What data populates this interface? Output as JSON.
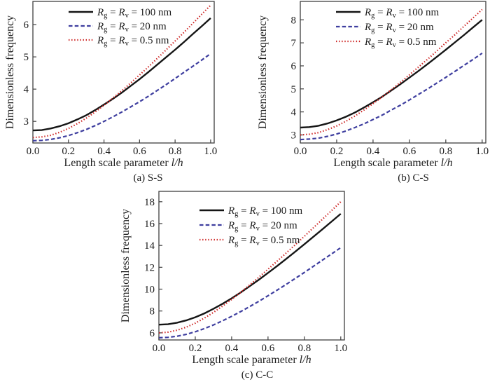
{
  "figure": {
    "background": "#ffffff",
    "text_color": "#1c1c1c",
    "frame_color": "#3f3f3f"
  },
  "chart_data": [
    {
      "id": "a",
      "type": "line",
      "caption": "(a) S-S",
      "ylabel": "Dimensionless frequency",
      "xlabel": "Length scale parameter l/h",
      "xlabel_parts": [
        {
          "t": "Length scale parameter "
        },
        {
          "t": "l/h",
          "i": 1
        }
      ],
      "xlim": [
        0,
        1.02
      ],
      "ylim": [
        2.33,
        6.72
      ],
      "xticks": [
        0,
        0.2,
        0.4,
        0.6,
        0.8,
        1.0
      ],
      "xtick_labels": [
        "0.0",
        "0.2",
        "0.4",
        "0.6",
        "0.8",
        "1.0"
      ],
      "yticks": [
        3,
        4,
        5,
        6
      ],
      "ytick_labels": [
        "3",
        "4",
        "5",
        "6"
      ],
      "legend_position": "top-left-inside",
      "grid": false,
      "x": [
        0,
        0.05,
        0.1,
        0.15,
        0.2,
        0.25,
        0.3,
        0.35,
        0.4,
        0.45,
        0.5,
        0.55,
        0.6,
        0.65,
        0.7,
        0.75,
        0.8,
        0.85,
        0.9,
        0.95,
        1.0
      ],
      "series": [
        {
          "key": "100nm",
          "name": "Rg = Rv = 100 nm",
          "label_parts": [
            {
              "t": "R",
              "i": 1
            },
            {
              "t": "g",
              "s": 1
            },
            {
              "t": " = "
            },
            {
              "t": "R",
              "i": 1
            },
            {
              "t": "v",
              "s": 1
            },
            {
              "t": " = 100 nm"
            }
          ],
          "style": "solid",
          "color": "#151515",
          "width": 2.4,
          "values": [
            2.72,
            2.73,
            2.78,
            2.85,
            2.94,
            3.06,
            3.19,
            3.35,
            3.52,
            3.7,
            3.89,
            4.1,
            4.31,
            4.53,
            4.76,
            4.99,
            5.22,
            5.46,
            5.71,
            5.95,
            6.2
          ]
        },
        {
          "key": "20nm",
          "name": "Rg = Rv = 20 nm",
          "label_parts": [
            {
              "t": "R",
              "i": 1
            },
            {
              "t": "g",
              "s": 1
            },
            {
              "t": " = "
            },
            {
              "t": "R",
              "i": 1
            },
            {
              "t": "v",
              "s": 1
            },
            {
              "t": " = 20 nm"
            }
          ],
          "style": "dashed",
          "color": "#3e3e9f",
          "width": 2.2,
          "values": [
            2.4,
            2.41,
            2.44,
            2.49,
            2.56,
            2.65,
            2.75,
            2.87,
            3.0,
            3.14,
            3.29,
            3.45,
            3.61,
            3.78,
            3.96,
            4.14,
            4.33,
            4.52,
            4.71,
            4.9,
            5.1
          ]
        },
        {
          "key": "0.5nm",
          "name": "Rg = Rv = 0.5 nm",
          "label_parts": [
            {
              "t": "R",
              "i": 1
            },
            {
              "t": "g",
              "s": 1
            },
            {
              "t": " = "
            },
            {
              "t": "R",
              "i": 1
            },
            {
              "t": "v",
              "s": 1
            },
            {
              "t": " = 0.5 nm"
            }
          ],
          "style": "dotted",
          "color": "#cc2120",
          "width": 2.2,
          "values": [
            2.5,
            2.52,
            2.57,
            2.66,
            2.78,
            2.93,
            3.1,
            3.29,
            3.5,
            3.72,
            3.95,
            4.19,
            4.44,
            4.69,
            4.95,
            5.22,
            5.49,
            5.76,
            6.04,
            6.32,
            6.6
          ]
        }
      ]
    },
    {
      "id": "b",
      "type": "line",
      "caption": "(b) C-S",
      "ylabel": "Dimensionless frequency",
      "xlabel": "Length scale parameter l/h",
      "xlabel_parts": [
        {
          "t": "Length scale parameter "
        },
        {
          "t": "l/h",
          "i": 1
        }
      ],
      "xlim": [
        0,
        1.02
      ],
      "ylim": [
        2.65,
        8.8
      ],
      "xticks": [
        0,
        0.2,
        0.4,
        0.6,
        0.8,
        1.0
      ],
      "xtick_labels": [
        "0.0",
        "0.2",
        "0.4",
        "0.6",
        "0.8",
        "1.0"
      ],
      "yticks": [
        3,
        4,
        5,
        6,
        7,
        8
      ],
      "ytick_labels": [
        "3",
        "4",
        "5",
        "6",
        "7",
        "8"
      ],
      "legend_position": "top-left-inside",
      "grid": false,
      "x": [
        0,
        0.05,
        0.1,
        0.15,
        0.2,
        0.25,
        0.3,
        0.35,
        0.4,
        0.45,
        0.5,
        0.55,
        0.6,
        0.65,
        0.7,
        0.75,
        0.8,
        0.85,
        0.9,
        0.95,
        1.0
      ],
      "series": [
        {
          "key": "100nm",
          "name": "Rg = Rv = 100 nm",
          "label_parts": [
            {
              "t": "R",
              "i": 1
            },
            {
              "t": "g",
              "s": 1
            },
            {
              "t": " = "
            },
            {
              "t": "R",
              "i": 1
            },
            {
              "t": "v",
              "s": 1
            },
            {
              "t": " = 100 nm"
            }
          ],
          "style": "solid",
          "color": "#151515",
          "width": 2.4,
          "values": [
            3.32,
            3.34,
            3.4,
            3.5,
            3.63,
            3.79,
            3.97,
            4.19,
            4.42,
            4.66,
            4.93,
            5.2,
            5.49,
            5.78,
            6.08,
            6.39,
            6.7,
            7.02,
            7.34,
            7.67,
            8.0
          ]
        },
        {
          "key": "20nm",
          "name": "Rg = Rv = 20 nm",
          "label_parts": [
            {
              "t": "R",
              "i": 1
            },
            {
              "t": "g",
              "s": 1
            },
            {
              "t": " = "
            },
            {
              "t": "R",
              "i": 1
            },
            {
              "t": "v",
              "s": 1
            },
            {
              "t": " = 20 nm"
            }
          ],
          "style": "dashed",
          "color": "#3e3e9f",
          "width": 2.2,
          "values": [
            2.8,
            2.82,
            2.86,
            2.94,
            3.04,
            3.17,
            3.32,
            3.48,
            3.67,
            3.86,
            4.08,
            4.29,
            4.52,
            4.76,
            5.0,
            5.25,
            5.5,
            5.76,
            6.02,
            6.28,
            6.55
          ]
        },
        {
          "key": "0.5nm",
          "name": "Rg = Rv = 0.5 nm",
          "label_parts": [
            {
              "t": "R",
              "i": 1
            },
            {
              "t": "g",
              "s": 1
            },
            {
              "t": " = "
            },
            {
              "t": "R",
              "i": 1
            },
            {
              "t": "v",
              "s": 1
            },
            {
              "t": " = 0.5 nm"
            }
          ],
          "style": "dotted",
          "color": "#cc2120",
          "width": 2.2,
          "values": [
            3.0,
            3.03,
            3.1,
            3.23,
            3.39,
            3.59,
            3.82,
            4.08,
            4.36,
            4.65,
            4.96,
            5.28,
            5.61,
            5.95,
            6.29,
            6.64,
            7.0,
            7.35,
            7.72,
            8.08,
            8.45
          ]
        }
      ]
    },
    {
      "id": "c",
      "type": "line",
      "caption": "(c) C-C",
      "ylabel": "Dimensionless frequency",
      "xlabel": "Length scale parameter l/h",
      "xlabel_parts": [
        {
          "t": "Length scale parameter "
        },
        {
          "t": "l/h",
          "i": 1
        }
      ],
      "xlim": [
        0,
        1.02
      ],
      "ylim": [
        5.35,
        18.95
      ],
      "xticks": [
        0,
        0.2,
        0.4,
        0.6,
        0.8,
        1.0
      ],
      "xtick_labels": [
        "0.0",
        "0.2",
        "0.4",
        "0.6",
        "0.8",
        "1.0"
      ],
      "yticks": [
        6,
        8,
        10,
        12,
        14,
        16,
        18
      ],
      "ytick_labels": [
        "6",
        "8",
        "10",
        "12",
        "14",
        "16",
        "18"
      ],
      "legend_position": "top-left-inside",
      "grid": false,
      "x": [
        0,
        0.05,
        0.1,
        0.15,
        0.2,
        0.25,
        0.3,
        0.35,
        0.4,
        0.45,
        0.5,
        0.55,
        0.6,
        0.65,
        0.7,
        0.75,
        0.8,
        0.85,
        0.9,
        0.95,
        1.0
      ],
      "series": [
        {
          "key": "100nm",
          "name": "Rg = Rv = 100 nm",
          "label_parts": [
            {
              "t": "R",
              "i": 1
            },
            {
              "t": "g",
              "s": 1
            },
            {
              "t": " = "
            },
            {
              "t": "R",
              "i": 1
            },
            {
              "t": "v",
              "s": 1
            },
            {
              "t": " = 100 nm"
            }
          ],
          "style": "solid",
          "color": "#151515",
          "width": 2.4,
          "values": [
            6.75,
            6.79,
            6.93,
            7.14,
            7.43,
            7.78,
            8.2,
            8.66,
            9.16,
            9.7,
            10.28,
            10.87,
            11.49,
            12.12,
            12.77,
            13.44,
            14.11,
            14.8,
            15.49,
            16.19,
            16.9
          ]
        },
        {
          "key": "20nm",
          "name": "Rg = Rv = 20 nm",
          "label_parts": [
            {
              "t": "R",
              "i": 1
            },
            {
              "t": "g",
              "s": 1
            },
            {
              "t": " = "
            },
            {
              "t": "R",
              "i": 1
            },
            {
              "t": "v",
              "s": 1
            },
            {
              "t": " = 20 nm"
            }
          ],
          "style": "dashed",
          "color": "#3e3e9f",
          "width": 2.2,
          "values": [
            5.55,
            5.59,
            5.69,
            5.86,
            6.1,
            6.39,
            6.72,
            7.1,
            7.51,
            7.95,
            8.41,
            8.89,
            9.4,
            9.91,
            10.44,
            10.98,
            11.53,
            12.09,
            12.66,
            13.23,
            13.8
          ]
        },
        {
          "key": "0.5nm",
          "name": "Rg = Rv = 0.5 nm",
          "label_parts": [
            {
              "t": "R",
              "i": 1
            },
            {
              "t": "g",
              "s": 1
            },
            {
              "t": " = "
            },
            {
              "t": "R",
              "i": 1
            },
            {
              "t": "v",
              "s": 1
            },
            {
              "t": " = 0.5 nm"
            }
          ],
          "style": "dotted",
          "color": "#cc2120",
          "width": 2.2,
          "values": [
            6.0,
            6.06,
            6.24,
            6.52,
            6.89,
            7.35,
            7.87,
            8.44,
            9.06,
            9.71,
            10.39,
            11.1,
            11.82,
            12.56,
            13.31,
            14.07,
            14.84,
            15.62,
            16.41,
            17.2,
            18.0
          ]
        }
      ]
    }
  ]
}
